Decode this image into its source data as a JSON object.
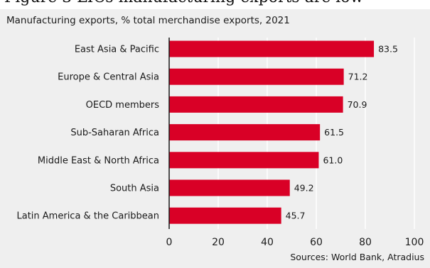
{
  "page": {
    "heading": "Figure 3 LICs manufacturing exports are low",
    "source": "Sources: World Bank, Atradius"
  },
  "colors": {
    "bar": "#d90026",
    "panel": "#efefef",
    "grid": "#ffffff",
    "axis": "#1a1a1a"
  },
  "chart_data": {
    "type": "bar",
    "orientation": "horizontal",
    "title": "Manufacturing exports, % total merchandise exports, 2021",
    "categories": [
      "East Asia & Pacific",
      "Europe & Central Asia",
      "OECD members",
      "Sub-Saharan Africa",
      "Middle East & North Africa",
      "South Asia",
      "Latin America & the Caribbean"
    ],
    "values": [
      83.5,
      71.2,
      70.9,
      61.5,
      61.0,
      49.2,
      45.7
    ],
    "value_labels": [
      "83.5",
      "71.2",
      "70.9",
      "61.5",
      "61.0",
      "49.2",
      "45.7"
    ],
    "xlim": [
      0,
      100
    ],
    "xticks": [
      0,
      20,
      40,
      60,
      80,
      100
    ],
    "xtick_labels": [
      "0",
      "20",
      "40",
      "60",
      "80",
      "100"
    ],
    "grid": true,
    "legend": "none"
  }
}
